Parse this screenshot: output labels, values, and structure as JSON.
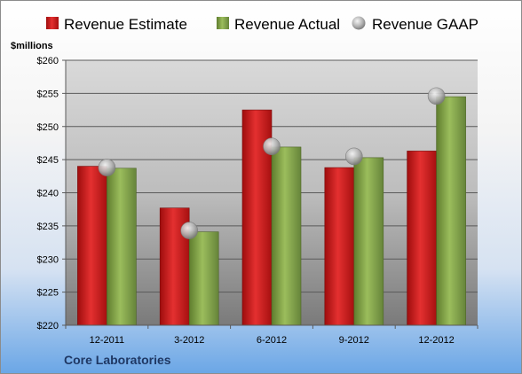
{
  "chart_data": {
    "type": "bar",
    "categories": [
      "12-2011",
      "3-2012",
      "6-2012",
      "9-2012",
      "12-2012"
    ],
    "series": [
      {
        "name": "Revenue Estimate",
        "kind": "bar",
        "color": "#e02020",
        "values": [
          244.0,
          237.7,
          252.5,
          243.8,
          246.3
        ]
      },
      {
        "name": "Revenue Actual",
        "kind": "bar",
        "color": "#8db050",
        "values": [
          243.7,
          234.1,
          246.9,
          245.3,
          254.5
        ]
      },
      {
        "name": "Revenue GAAP",
        "kind": "marker",
        "color": "#b0b0b0",
        "values": [
          243.8,
          234.3,
          247.0,
          245.5,
          254.6
        ]
      }
    ],
    "unit_label": "$millions",
    "yticks": [
      "$220",
      "$225",
      "$230",
      "$235",
      "$240",
      "$245",
      "$250",
      "$255",
      "$260"
    ],
    "ylim": [
      220,
      260
    ],
    "ystep": 5,
    "grid": true,
    "legend": "top",
    "company": "Core Laboratories"
  }
}
